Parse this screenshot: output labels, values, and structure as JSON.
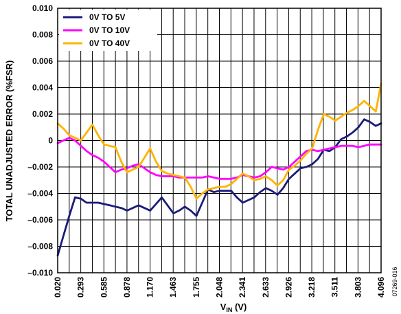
{
  "chart_data": {
    "type": "line",
    "title": "",
    "xlabel": "V",
    "xlabel_sub": "IN",
    "xlabel_unit": " (V)",
    "ylabel": "TOTAL UNADJUSTED ERROR (%FSR)",
    "figure_code": "07269-016",
    "x_tick_labels": [
      "0.020",
      "0.293",
      "0.585",
      "0.878",
      "1.170",
      "1.463",
      "1.755",
      "2.048",
      "2.341",
      "2.633",
      "2.926",
      "3.218",
      "3.511",
      "3.803",
      "4.096"
    ],
    "y_tick_labels": [
      "0.010",
      "0.008",
      "0.006",
      "0.004",
      "0.002",
      "0",
      "–0.002",
      "–0.004",
      "–0.006",
      "–0.008",
      "–0.010"
    ],
    "xlim": [
      0.02,
      4.096
    ],
    "ylim": [
      -0.01,
      0.01
    ],
    "x_minor_step": 0.1456,
    "grid": true,
    "legend_position": "top-left",
    "x": [
      0.02,
      0.093,
      0.166,
      0.239,
      0.312,
      0.384,
      0.457,
      0.53,
      0.603,
      0.676,
      0.748,
      0.821,
      0.894,
      0.967,
      1.04,
      1.113,
      1.186,
      1.259,
      1.332,
      1.405,
      1.478,
      1.551,
      1.623,
      1.696,
      1.769,
      1.842,
      1.915,
      1.988,
      2.061,
      2.134,
      2.206,
      2.279,
      2.352,
      2.425,
      2.498,
      2.571,
      2.644,
      2.717,
      2.79,
      2.862,
      2.935,
      3.008,
      3.081,
      3.154,
      3.227,
      3.3,
      3.373,
      3.446,
      3.519,
      3.592,
      3.664,
      3.737,
      3.81,
      3.883,
      3.956,
      4.029,
      4.096
    ],
    "series": [
      {
        "name": "0V TO 5V",
        "color": "#1b1b7a",
        "values": [
          -0.0087,
          -0.0072,
          -0.0057,
          -0.0043,
          -0.0044,
          -0.0047,
          -0.0047,
          -0.0047,
          -0.0048,
          -0.0049,
          -0.005,
          -0.0051,
          -0.0053,
          -0.0051,
          -0.0049,
          -0.0051,
          -0.0053,
          -0.0048,
          -0.0043,
          -0.0049,
          -0.0055,
          -0.0053,
          -0.005,
          -0.0053,
          -0.0057,
          -0.0047,
          -0.0037,
          -0.0039,
          -0.0038,
          -0.0038,
          -0.0038,
          -0.0043,
          -0.0047,
          -0.0045,
          -0.0043,
          -0.0039,
          -0.0036,
          -0.0038,
          -0.0041,
          -0.0036,
          -0.0029,
          -0.0025,
          -0.0021,
          -0.002,
          -0.0018,
          -0.0014,
          -0.0007,
          -0.0008,
          -0.0005,
          0.0001,
          0.0003,
          0.0006,
          0.001,
          0.0016,
          0.0014,
          0.0011,
          0.0013
        ]
      },
      {
        "name": "0V TO 10V",
        "color": "#ff00ff",
        "values": [
          -0.0002,
          0.0,
          0.0002,
          0.0,
          -0.0004,
          -0.0008,
          -0.0011,
          -0.0013,
          -0.0016,
          -0.002,
          -0.0024,
          -0.0022,
          -0.0021,
          -0.0019,
          -0.0018,
          -0.0021,
          -0.0024,
          -0.0026,
          -0.0027,
          -0.0027,
          -0.0027,
          -0.0028,
          -0.0028,
          -0.0028,
          -0.0028,
          -0.0028,
          -0.0027,
          -0.0028,
          -0.0029,
          -0.0029,
          -0.0029,
          -0.0028,
          -0.0026,
          -0.0027,
          -0.0028,
          -0.0027,
          -0.0024,
          -0.002,
          -0.0021,
          -0.0022,
          -0.002,
          -0.0016,
          -0.0012,
          -0.0008,
          -0.0007,
          -0.0008,
          -0.0007,
          -0.0006,
          -0.0005,
          -0.0004,
          -0.0004,
          -0.0004,
          -0.0005,
          -0.0004,
          -0.0003,
          -0.0003,
          -0.0003
        ]
      },
      {
        "name": "0V TO 40V",
        "color": "#ffb300",
        "values": [
          0.0013,
          0.0009,
          0.0004,
          0.0002,
          0.0,
          0.0006,
          0.0012,
          0.0004,
          -0.0003,
          -0.0004,
          -0.0005,
          -0.0016,
          -0.0024,
          -0.0022,
          -0.002,
          -0.0013,
          -0.0006,
          -0.0016,
          -0.0023,
          -0.0025,
          -0.0026,
          -0.0027,
          -0.0028,
          -0.0035,
          -0.0044,
          -0.004,
          -0.0037,
          -0.0036,
          -0.0035,
          -0.0035,
          -0.0033,
          -0.0029,
          -0.0025,
          -0.0027,
          -0.003,
          -0.0029,
          -0.0027,
          -0.003,
          -0.0034,
          -0.003,
          -0.0022,
          -0.0019,
          -0.0015,
          -0.001,
          -0.0006,
          0.0008,
          0.002,
          0.0018,
          0.0015,
          0.0018,
          0.0021,
          0.0023,
          0.0026,
          0.003,
          0.0026,
          0.0022,
          0.0043
        ]
      }
    ]
  }
}
